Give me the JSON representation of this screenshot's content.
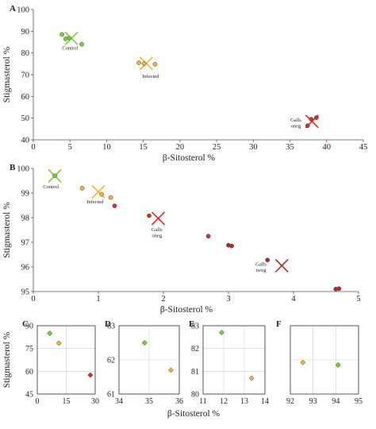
{
  "colors": {
    "control": "#7ecb3f",
    "infected": "#f0b43a",
    "galls": "#d0302a",
    "galls_dark": "#a8302a",
    "point_edge": "#444444"
  },
  "chart_data": [
    {
      "id": "A",
      "type": "scatter",
      "panel_label": "A",
      "xlabel": "β-Sitosterol  %",
      "ylabel": "Stigmasterol %",
      "xlim": [
        0,
        45
      ],
      "ylim": [
        40,
        100
      ],
      "xticks": [
        0,
        5,
        10,
        15,
        20,
        25,
        30,
        35,
        40,
        45
      ],
      "yticks": [
        40,
        50,
        60,
        70,
        80,
        90,
        100
      ],
      "grid": false,
      "series": [
        {
          "group": "control",
          "points": [
            [
              3.9,
              88.5
            ],
            [
              4.4,
              86.5
            ],
            [
              6.6,
              84.0
            ],
            [
              4.9,
              86.9
            ]
          ]
        },
        {
          "group": "infected",
          "points": [
            [
              14.4,
              75.5
            ],
            [
              15.1,
              75.1
            ],
            [
              16.6,
              74.8
            ]
          ]
        },
        {
          "group": "galls",
          "points": [
            [
              37.4,
              46.5
            ],
            [
              37.9,
              49.5
            ],
            [
              38.6,
              50.2
            ]
          ]
        }
      ],
      "centroids": [
        {
          "group": "control",
          "point": [
            5.2,
            86.7
          ],
          "label": "Control",
          "label_at": [
            5.0,
            81.5
          ]
        },
        {
          "group": "infected",
          "point": [
            15.4,
            75.2
          ],
          "label": "Infected",
          "label_at": [
            16.0,
            68.5
          ]
        },
        {
          "group": "galls",
          "point": [
            38.0,
            48.5
          ],
          "label": "Galls\noneg",
          "label_at": [
            35.8,
            48.5
          ]
        }
      ]
    },
    {
      "id": "B",
      "type": "scatter",
      "panel_label": "B",
      "xlabel": "β-Sitosterol  %",
      "ylabel": "Stigmasterol %",
      "xlim": [
        0,
        5
      ],
      "ylim": [
        95,
        100
      ],
      "xticks": [
        0,
        1,
        2,
        3,
        4,
        5
      ],
      "yticks": [
        95,
        96,
        97,
        98,
        99,
        100
      ],
      "grid": false,
      "series": [
        {
          "group": "control",
          "points": [
            [
              0.33,
              99.7
            ]
          ]
        },
        {
          "group": "infected",
          "points": [
            [
              0.75,
              99.2
            ],
            [
              1.05,
              98.95
            ],
            [
              1.19,
              98.82
            ]
          ]
        },
        {
          "group": "galls",
          "points": [
            [
              1.25,
              98.48
            ],
            [
              1.78,
              98.08
            ],
            [
              2.69,
              97.25
            ]
          ]
        },
        {
          "group": "galls_dark",
          "points": [
            [
              3.0,
              96.88
            ],
            [
              3.05,
              96.85
            ],
            [
              3.6,
              96.28
            ],
            [
              4.65,
              95.1
            ],
            [
              4.7,
              95.12
            ]
          ]
        }
      ],
      "centroids": [
        {
          "group": "control",
          "point": [
            0.33,
            99.7
          ],
          "label": "Control",
          "label_at": [
            0.27,
            99.2
          ]
        },
        {
          "group": "infected",
          "point": [
            1.0,
            99.05
          ],
          "label": "Infected",
          "label_at": [
            0.95,
            98.58
          ]
        },
        {
          "group": "galls",
          "point": [
            1.92,
            97.97
          ],
          "label": "Galls\noneg",
          "label_at": [
            1.9,
            97.45
          ]
        },
        {
          "group": "galls_dark",
          "point": [
            3.82,
            96.05
          ],
          "label": "Galls\ntwog",
          "label_at": [
            3.5,
            96.05
          ]
        }
      ]
    },
    {
      "id": "C",
      "type": "scatter",
      "panel_label": "C",
      "xlabel": "",
      "ylabel": "Stigmasterol %",
      "xlim": [
        0,
        30
      ],
      "ylim": [
        45,
        90
      ],
      "xticks": [
        0,
        15,
        30
      ],
      "yticks": [
        45,
        60,
        75,
        90
      ],
      "grid": true,
      "series": [
        {
          "group": "control",
          "points": [
            [
              6.5,
              85.0
            ]
          ]
        },
        {
          "group": "infected",
          "points": [
            [
              11.2,
              78.5
            ]
          ]
        },
        {
          "group": "galls",
          "points": [
            [
              27.5,
              57.5
            ]
          ]
        }
      ]
    },
    {
      "id": "D",
      "type": "scatter",
      "panel_label": "D",
      "xlabel": "",
      "ylabel": "",
      "xlim": [
        34,
        36
      ],
      "ylim": [
        61,
        63
      ],
      "xticks": [
        34,
        35,
        36
      ],
      "yticks": [
        61,
        62,
        63
      ],
      "grid": true,
      "series": [
        {
          "group": "control",
          "points": [
            [
              34.85,
              62.5
            ]
          ]
        },
        {
          "group": "infected",
          "points": [
            [
              35.72,
              61.7
            ]
          ]
        }
      ]
    },
    {
      "id": "E",
      "type": "scatter",
      "panel_label": "E",
      "xlabel": "",
      "ylabel": "",
      "xlim": [
        11,
        14
      ],
      "ylim": [
        80,
        83
      ],
      "xticks": [
        11,
        12,
        13,
        14
      ],
      "yticks": [
        80,
        81,
        82,
        83
      ],
      "grid": true,
      "series": [
        {
          "group": "control",
          "points": [
            [
              11.9,
              82.7
            ]
          ]
        },
        {
          "group": "infected",
          "points": [
            [
              13.35,
              80.7
            ]
          ]
        }
      ]
    },
    {
      "id": "F",
      "type": "scatter",
      "panel_label": "F",
      "xlabel": "",
      "ylabel": "",
      "xlim": [
        92,
        95
      ],
      "ylim": [
        0,
        4
      ],
      "xticks": [
        92,
        93,
        94,
        95
      ],
      "yticks": [],
      "grid": true,
      "series": [
        {
          "group": "infected",
          "points": [
            [
              92.55,
              1.85
            ]
          ]
        },
        {
          "group": "control",
          "points": [
            [
              94.1,
              1.7
            ]
          ]
        }
      ]
    }
  ],
  "shared_labels": {
    "bottom_xlabel": "β-Sitosterol  %",
    "left_ylabel": "Stigmasterol %"
  }
}
